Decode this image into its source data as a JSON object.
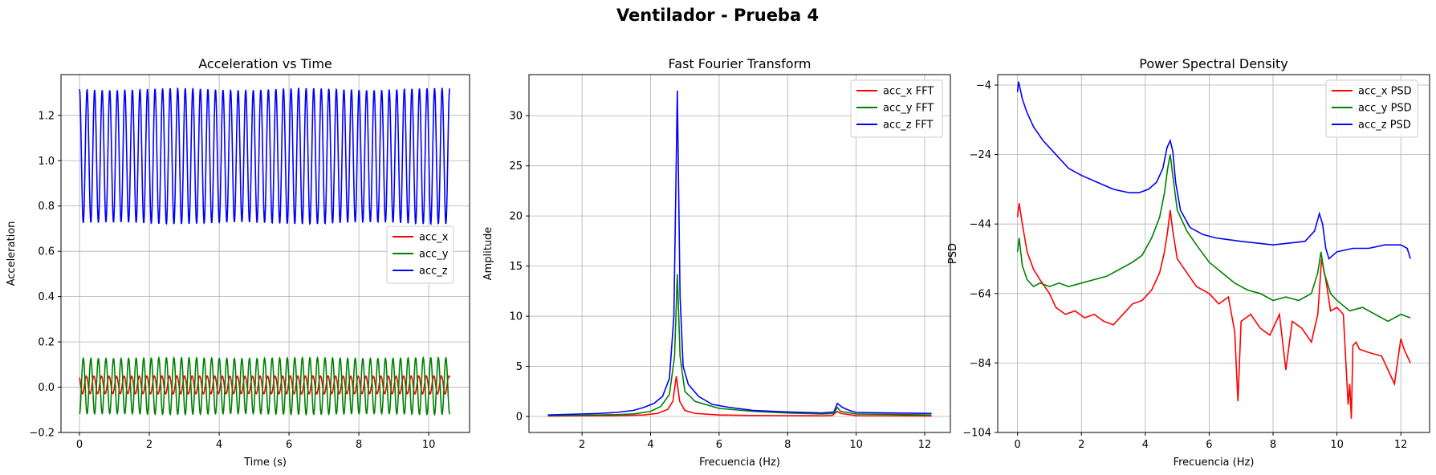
{
  "figure": {
    "suptitle": "Ventilador - Prueba 4"
  },
  "chart_data": [
    {
      "type": "line",
      "title": "Acceleration vs Time",
      "xlabel": "Time (s)",
      "ylabel": "Acceleration",
      "xlim": [
        -0.53,
        11.17
      ],
      "ylim": [
        -0.2,
        1.38
      ],
      "xticks": [
        0,
        2,
        4,
        6,
        8,
        10
      ],
      "yticks": [
        -0.2,
        0.0,
        0.2,
        0.4,
        0.6,
        0.8,
        1.0,
        1.2
      ],
      "ytick_labels": [
        "−0.2",
        "0.0",
        "0.2",
        "0.4",
        "0.6",
        "0.8",
        "1.0",
        "1.2"
      ],
      "grid": true,
      "legend": "center-right",
      "signal": {
        "kind": "periodic",
        "t_start": 0,
        "t_end": 10.6,
        "cycles": 49
      },
      "series": [
        {
          "name": "acc_x",
          "color": "#ff0000",
          "min": -0.03,
          "max": 0.05,
          "phase": 0.6
        },
        {
          "name": "acc_y",
          "color": "#008000",
          "min": -0.12,
          "max": 0.13,
          "phase": 3.14
        },
        {
          "name": "acc_z",
          "color": "#0000ff",
          "min": 0.72,
          "max": 1.32,
          "phase": 0.0
        }
      ]
    },
    {
      "type": "line",
      "title": "Fast Fourier Transform",
      "xlabel": "Frecuencia (Hz)",
      "ylabel": "Amplitude",
      "xlim": [
        0.45,
        12.75
      ],
      "ylim": [
        -1.6,
        34.1
      ],
      "xticks": [
        2,
        4,
        6,
        8,
        10,
        12
      ],
      "yticks": [
        0,
        5,
        10,
        15,
        20,
        25,
        30
      ],
      "grid": true,
      "legend": "top-right",
      "series": [
        {
          "name": "acc_x FFT",
          "color": "#ff0000",
          "x": [
            1.0,
            2.0,
            3.0,
            3.8,
            4.2,
            4.5,
            4.65,
            4.75,
            4.85,
            5.0,
            5.3,
            6.0,
            7.0,
            8.0,
            9.0,
            9.3,
            9.45,
            9.55,
            10.0,
            11.0,
            12.2
          ],
          "y": [
            0.05,
            0.06,
            0.08,
            0.15,
            0.3,
            0.7,
            1.5,
            4.0,
            1.5,
            0.6,
            0.3,
            0.15,
            0.1,
            0.08,
            0.06,
            0.1,
            0.5,
            0.3,
            0.08,
            0.06,
            0.05
          ]
        },
        {
          "name": "acc_y FFT",
          "color": "#008000",
          "x": [
            1.0,
            2.0,
            3.0,
            3.5,
            4.0,
            4.3,
            4.55,
            4.7,
            4.78,
            4.86,
            5.0,
            5.3,
            6.0,
            7.0,
            8.0,
            9.0,
            9.35,
            9.45,
            9.55,
            10.0,
            11.0,
            12.2
          ],
          "y": [
            0.1,
            0.12,
            0.18,
            0.25,
            0.5,
            1.0,
            2.2,
            6.0,
            14.2,
            6.0,
            2.5,
            1.5,
            0.8,
            0.5,
            0.35,
            0.25,
            0.3,
            0.9,
            0.5,
            0.25,
            0.2,
            0.15
          ]
        },
        {
          "name": "acc_z FFT",
          "color": "#0000ff",
          "x": [
            1.0,
            1.5,
            2.0,
            2.5,
            3.0,
            3.5,
            3.8,
            4.1,
            4.35,
            4.55,
            4.68,
            4.78,
            4.86,
            4.95,
            5.1,
            5.4,
            5.8,
            6.3,
            7.0,
            8.0,
            9.0,
            9.35,
            9.45,
            9.6,
            9.8,
            10.0,
            11.0,
            12.2
          ],
          "y": [
            0.15,
            0.2,
            0.25,
            0.3,
            0.4,
            0.6,
            0.9,
            1.3,
            2.0,
            3.8,
            10.0,
            32.5,
            12.0,
            5.0,
            3.2,
            2.0,
            1.2,
            0.9,
            0.6,
            0.45,
            0.35,
            0.45,
            1.3,
            0.9,
            0.6,
            0.4,
            0.35,
            0.3
          ]
        }
      ]
    },
    {
      "type": "line",
      "title": "Power Spectral Density",
      "xlabel": "Frecuencia (Hz)",
      "ylabel": "PSD",
      "xlim": [
        -0.62,
        12.9
      ],
      "ylim": [
        -104,
        -1
      ],
      "xticks": [
        0,
        2,
        4,
        6,
        8,
        10,
        12
      ],
      "yticks": [
        -104,
        -84,
        -64,
        -44,
        -24,
        -4
      ],
      "ytick_labels": [
        "−104",
        "−84",
        "−64",
        "−44",
        "−24",
        "−4"
      ],
      "grid": true,
      "legend": "top-right",
      "series": [
        {
          "name": "acc_x PSD",
          "color": "#ff0000",
          "x": [
            0.0,
            0.05,
            0.15,
            0.3,
            0.5,
            0.7,
            1.0,
            1.2,
            1.5,
            1.8,
            2.1,
            2.4,
            2.7,
            3.0,
            3.3,
            3.6,
            3.9,
            4.2,
            4.45,
            4.6,
            4.7,
            4.78,
            4.86,
            5.0,
            5.3,
            5.6,
            6.0,
            6.3,
            6.6,
            6.8,
            6.9,
            7.0,
            7.3,
            7.6,
            7.9,
            8.2,
            8.4,
            8.6,
            8.9,
            9.2,
            9.4,
            9.52,
            9.65,
            9.8,
            10.0,
            10.2,
            10.35,
            10.4,
            10.45,
            10.5,
            10.6,
            10.7,
            11.0,
            11.4,
            11.8,
            12.0,
            12.1,
            12.3
          ],
          "y": [
            -42,
            -38,
            -44,
            -52,
            -57,
            -60,
            -64,
            -68,
            -70,
            -69,
            -71,
            -70,
            -72,
            -73,
            -70,
            -67,
            -66,
            -63,
            -58,
            -52,
            -46,
            -40,
            -46,
            -54,
            -58,
            -62,
            -64,
            -67,
            -65,
            -75,
            -95,
            -72,
            -70,
            -74,
            -76,
            -70,
            -86,
            -72,
            -74,
            -78,
            -70,
            -54,
            -60,
            -69,
            -68,
            -70,
            -96,
            -90,
            -100,
            -79,
            -78,
            -80,
            -81,
            -82,
            -90,
            -77,
            -80,
            -84
          ]
        },
        {
          "name": "acc_y PSD",
          "color": "#008000",
          "x": [
            0.0,
            0.05,
            0.15,
            0.3,
            0.5,
            0.7,
            1.0,
            1.3,
            1.6,
            2.0,
            2.4,
            2.8,
            3.2,
            3.6,
            3.9,
            4.2,
            4.45,
            4.6,
            4.7,
            4.78,
            4.86,
            5.0,
            5.3,
            5.6,
            6.0,
            6.4,
            6.8,
            7.2,
            7.6,
            8.0,
            8.4,
            8.8,
            9.2,
            9.4,
            9.5,
            9.6,
            9.8,
            10.0,
            10.4,
            10.8,
            11.2,
            11.6,
            12.0,
            12.3
          ],
          "y": [
            -52,
            -48,
            -56,
            -60,
            -62,
            -61,
            -62,
            -61,
            -62,
            -61,
            -60,
            -59,
            -57,
            -55,
            -53,
            -48,
            -42,
            -35,
            -28,
            -24,
            -30,
            -40,
            -46,
            -50,
            -55,
            -58,
            -61,
            -63,
            -64,
            -66,
            -65,
            -66,
            -64,
            -58,
            -52,
            -58,
            -64,
            -66,
            -69,
            -68,
            -70,
            -72,
            -70,
            -71
          ]
        },
        {
          "name": "acc_z PSD",
          "color": "#0000ff",
          "x": [
            0.0,
            0.03,
            0.08,
            0.15,
            0.3,
            0.5,
            0.8,
            1.2,
            1.6,
            2.0,
            2.5,
            3.0,
            3.5,
            3.8,
            4.1,
            4.35,
            4.55,
            4.68,
            4.78,
            4.86,
            4.95,
            5.1,
            5.4,
            5.8,
            6.2,
            7.0,
            8.0,
            9.0,
            9.3,
            9.45,
            9.55,
            9.65,
            9.75,
            10.0,
            10.5,
            11.0,
            11.5,
            12.0,
            12.2,
            12.3
          ],
          "y": [
            -6,
            -3,
            -5,
            -8,
            -12,
            -16,
            -20,
            -24,
            -28,
            -30,
            -32,
            -34,
            -35,
            -35,
            -34,
            -32,
            -28,
            -22,
            -20,
            -23,
            -32,
            -40,
            -45,
            -47,
            -48,
            -49,
            -50,
            -49,
            -46,
            -41,
            -44,
            -51,
            -54,
            -52,
            -51,
            -51,
            -50,
            -50,
            -51,
            -54
          ]
        }
      ]
    }
  ]
}
